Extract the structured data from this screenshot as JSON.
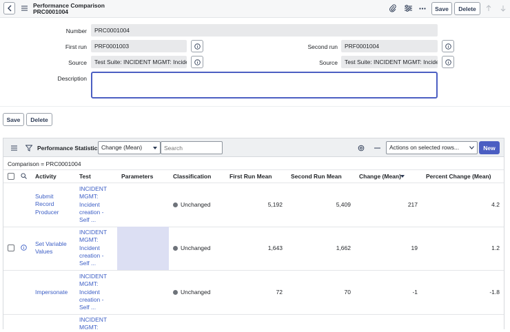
{
  "header": {
    "title": "Performance Comparison",
    "subtitle": "PRC0001004",
    "save_label": "Save",
    "delete_label": "Delete"
  },
  "form": {
    "number_label": "Number",
    "number_value": "PRC0001004",
    "first_run_label": "First run",
    "first_run_value": "PRF0001003",
    "second_run_label": "Second run",
    "second_run_value": "PRF0001004",
    "source_label": "Source",
    "source1_value": "Test Suite: INCIDENT MGMT: Incident",
    "source2_value": "Test Suite: INCIDENT MGMT: Incident",
    "description_label": "Description",
    "description_value": "",
    "save_label": "Save",
    "delete_label": "Delete"
  },
  "list": {
    "title": "Performance Statistics",
    "field_select": "Change (Mean)",
    "search_placeholder": "Search",
    "actions_select": "Actions on selected rows...",
    "new_label": "New",
    "breadcrumb": "Comparison = PRC0001004",
    "columns": {
      "activity": "Activity",
      "test": "Test",
      "parameters": "Parameters",
      "classification": "Classification",
      "first_mean": "First Run Mean",
      "second_mean": "Second Run Mean",
      "change": "Change (Mean)",
      "percent": "Percent Change (Mean)"
    },
    "rows": [
      {
        "activity": "Submit Record Producer",
        "test": "INCIDENT MGMT: Incident creation - Self ...",
        "parameters": "",
        "classification": "Unchanged",
        "first_mean": "5,192",
        "second_mean": "5,409",
        "change": "217",
        "percent": "4.2"
      },
      {
        "activity": "Set Variable Values",
        "test": "INCIDENT MGMT: Incident creation - Self ...",
        "parameters": "",
        "classification": "Unchanged",
        "first_mean": "1,643",
        "second_mean": "1,662",
        "change": "19",
        "percent": "1.2"
      },
      {
        "activity": "Impersonate",
        "test": "INCIDENT MGMT: Incident creation - Self ...",
        "parameters": "",
        "classification": "Unchanged",
        "first_mean": "72",
        "second_mean": "70",
        "change": "-1",
        "percent": "-1.8"
      },
      {
        "test": "INCIDENT MGMT:"
      }
    ]
  },
  "colors": {
    "accent": "#4b5ec2",
    "link": "#3c5ec5",
    "status_unchanged": "#6e737a",
    "row_hover": "#dcdff3"
  }
}
